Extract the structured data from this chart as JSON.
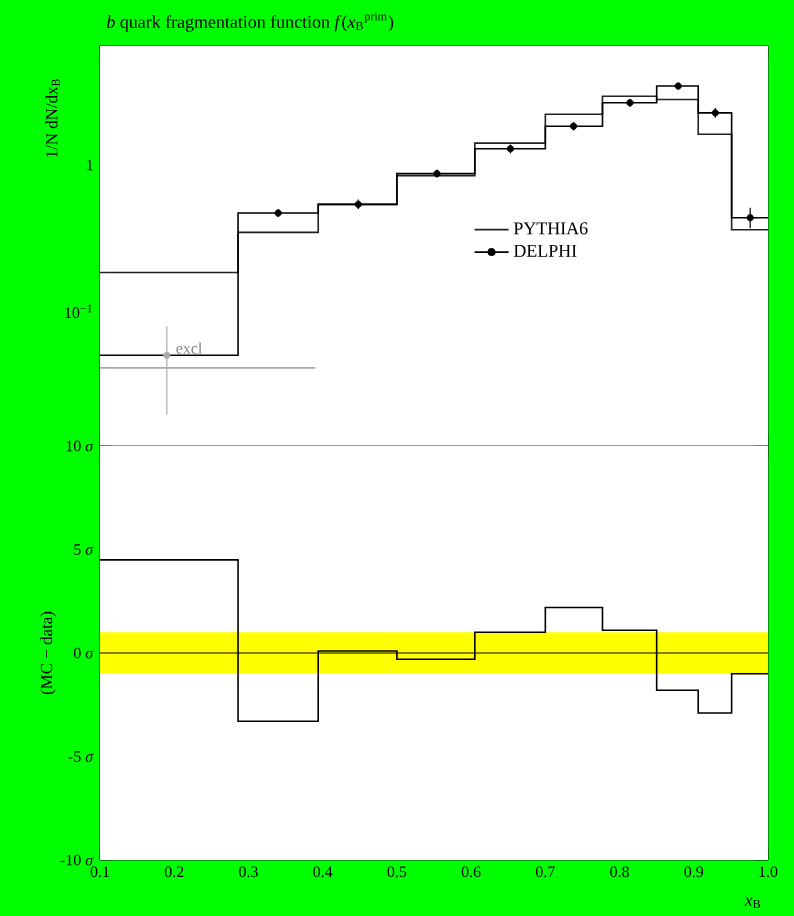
{
  "chart_data": [
    {
      "type": "histogram",
      "title": "*b* quark fragmentation function *f*(*x*$_{B}$$^{prim}$)",
      "ylabel": "1/N dN/dx$_{B}$",
      "bins": [
        0.1,
        0.286,
        0.394,
        0.5,
        0.605,
        0.7,
        0.777,
        0.85,
        0.906,
        0.951,
        1.0
      ],
      "xlim": [
        0.1,
        1.0
      ],
      "xticks": [
        0.1,
        0.2,
        0.3,
        0.4,
        0.5,
        0.6,
        0.7,
        0.8,
        0.9,
        1.0
      ],
      "ylim": [
        0.012,
        6.5
      ],
      "yticks": [
        {
          "value": 0.1,
          "label": "10$^{−1}$"
        },
        1
      ],
      "log": "y",
      "tick_labels": "y",
      "legend": "right",
      "series": [
        {
          "name": "PYTHIA6",
          "color": "#222222",
          "values": [
            0.184,
            0.346,
            0.538,
            0.845,
            1.41,
            2.22,
            2.95,
            2.8,
            1.62,
            0.361
          ]
        },
        {
          "color": "#000000",
          "values": [
            0.05,
            0.469,
            0.538,
            0.872,
            1.29,
            1.84,
            2.66,
            3.46,
            2.27,
            0.436
          ]
        },
        {
          "name": "DELPHI",
          "type": "scatter",
          "color": "#000000",
          "marker": "circle",
          "x": [
            0.19,
            0.34,
            0.448,
            0.554,
            0.653,
            0.738,
            0.814,
            0.879,
            0.929,
            0.976
          ],
          "values": [
            0.05,
            0.469,
            0.538,
            0.872,
            1.29,
            1.84,
            2.66,
            3.46,
            2.27,
            0.436
          ],
          "errors": [
            [
              0.0196,
              0.079
            ],
            [
              0.44,
              0.5
            ],
            [
              0.5,
              0.58
            ],
            [
              0.82,
              0.93
            ],
            [
              1.2,
              1.38
            ],
            [
              1.72,
              1.96
            ],
            [
              2.5,
              2.82
            ],
            [
              3.28,
              3.65
            ],
            [
              2.1,
              2.45
            ],
            [
              0.37,
              0.51
            ]
          ],
          "colors": [
            "#aaaaaa",
            "#000000",
            "#000000",
            "#000000",
            "#000000",
            "#000000",
            "#000000",
            "#000000",
            "#000000",
            "#000000"
          ]
        },
        {
          "type": "line",
          "color": "#aaaaaa",
          "x": [
            0.1,
            0.39
          ],
          "values": [
            0.041,
            0.041
          ]
        }
      ],
      "annotations": [
        {
          "text": "excl",
          "x": 0.22,
          "y": 0.056
        }
      ]
    },
    {
      "type": "histogram",
      "ylabel": "(MC − data)",
      "xlabel": "*x*$_{B}$",
      "bins": [
        0.1,
        0.286,
        0.394,
        0.5,
        0.605,
        0.7,
        0.777,
        0.85,
        0.906,
        0.951,
        1.0
      ],
      "xlim": [
        0.1,
        1.0
      ],
      "xticks": [
        0.1,
        0.2,
        0.3,
        0.4,
        0.5,
        0.6,
        0.7,
        0.8,
        0.9,
        {
          "value": 1.0,
          "label": "1.0"
        }
      ],
      "ylim": [
        -10,
        10
      ],
      "yticks": [
        {
          "value": -10,
          "label": "-10 *σ*"
        },
        {
          "value": -5,
          "label": "-5 *σ*"
        },
        {
          "value": 0,
          "label": "0 *σ*"
        },
        {
          "value": 5,
          "label": "5 *σ*"
        },
        {
          "value": 10,
          "label": "10 *σ*"
        }
      ],
      "series": [
        {
          "color": "#000000",
          "values": [
            4.5,
            -3.3,
            0.1,
            -0.3,
            1.0,
            2.2,
            1.1,
            -1.8,
            -2.9,
            -1.0
          ]
        }
      ],
      "bands": [
        {
          "axis": "y",
          "from": -1,
          "to": 1,
          "color": "#ffff00"
        }
      ],
      "ref_lines": [
        {
          "axis": "y",
          "value": 0,
          "color": "#000000"
        }
      ]
    }
  ]
}
